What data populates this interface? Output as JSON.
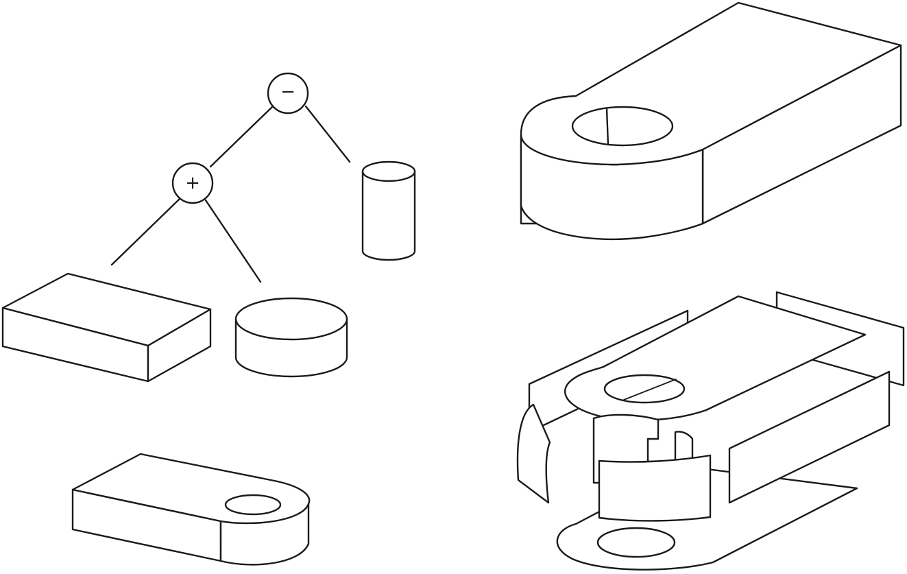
{
  "csg_tree": {
    "root_operator": "−",
    "child_operator": "+",
    "operands": [
      "box",
      "short-cylinder",
      "tall-cylinder"
    ]
  },
  "results": [
    "merged-solid",
    "solid-with-hole",
    "exploded-faces"
  ],
  "colors": {
    "stroke": "#1a1a1a",
    "background": "#ffffff"
  }
}
